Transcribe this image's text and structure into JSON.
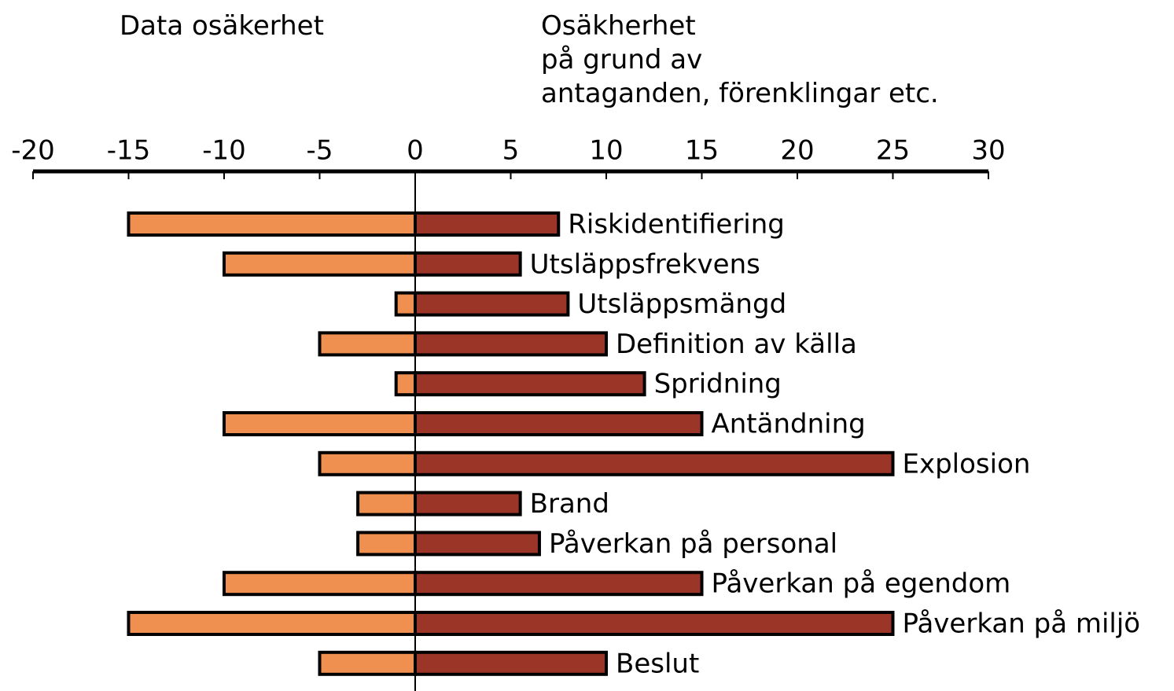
{
  "chart_data": {
    "type": "diverging_bar",
    "categories": [
      "Riskidentifiering",
      "Utsläppsfrekvens",
      "Utsläppsmängd",
      "Definition av källa",
      "Spridning",
      "Antändning",
      "Explosion",
      "Brand",
      "Påverkan på personal",
      "Påverkan på egendom",
      "Påverkan på miljö",
      "Beslut"
    ],
    "series": [
      {
        "name": "Data osäkerhet",
        "color": "#f09050",
        "values": [
          -15,
          -10,
          -1,
          -5,
          -1,
          -10,
          -5,
          -3,
          -3,
          -10,
          -15,
          -5
        ]
      },
      {
        "name": "Osäkherhet\npå grund av\nantaganden, förenklingar etc.",
        "color": "#9b3528",
        "values": [
          7.5,
          5.5,
          8,
          10,
          12,
          15,
          25,
          5.5,
          6.5,
          15,
          25,
          10
        ]
      }
    ],
    "xlim": [
      -20,
      30
    ],
    "xticks": [
      -20,
      -15,
      -10,
      -5,
      0,
      5,
      10,
      15,
      20,
      25,
      30
    ]
  }
}
